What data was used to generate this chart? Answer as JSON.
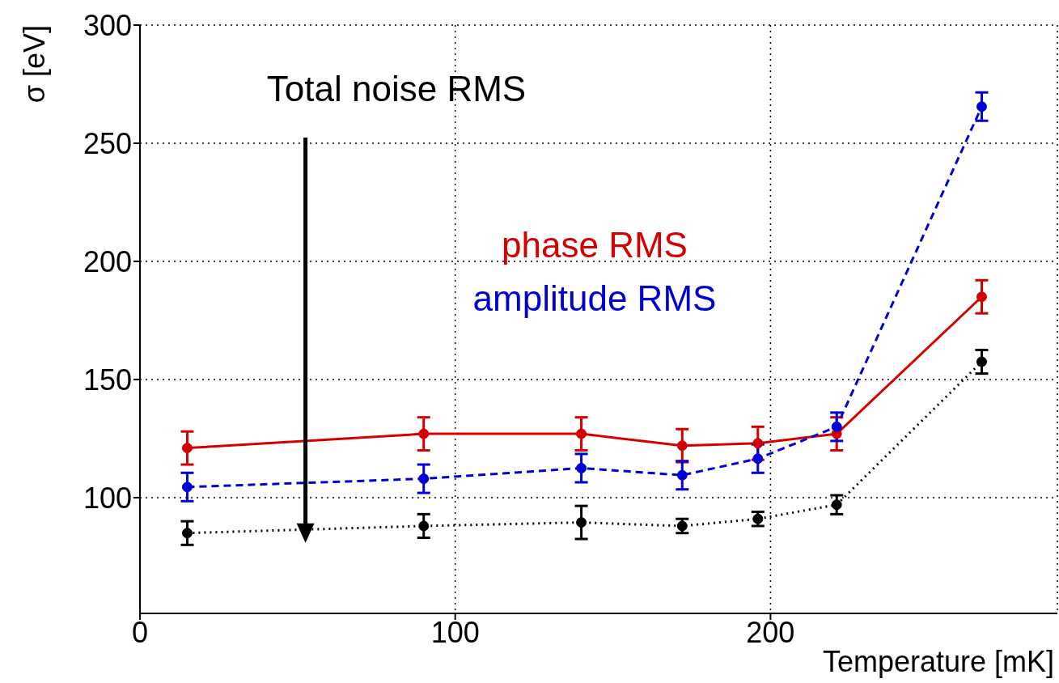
{
  "chart_data": {
    "type": "line",
    "xlabel": "Temperature [mK]",
    "ylabel": "σ [eV]",
    "x": [
      15,
      90,
      140,
      172,
      196,
      221,
      267
    ],
    "xlim": [
      0,
      291
    ],
    "xticks": [
      0,
      100,
      200
    ],
    "ylim": [
      51,
      300
    ],
    "yticks": [
      100,
      150,
      200,
      250,
      300
    ],
    "grid": true,
    "marker": "circle",
    "series": [
      {
        "name": "phase RMS",
        "color": "#d40000",
        "line_style": "solid",
        "values": [
          121,
          127,
          127,
          122,
          123,
          127,
          185
        ],
        "errors": [
          7,
          7,
          7,
          7,
          7,
          7,
          7
        ]
      },
      {
        "name": "amplitude RMS",
        "color": "#0000d4",
        "line_style": "dashed",
        "values": [
          104.5,
          108,
          112.5,
          109.5,
          116.5,
          130,
          265.5
        ],
        "errors": [
          6,
          6,
          6,
          6,
          6,
          6,
          6
        ]
      },
      {
        "name": "Total noise RMS",
        "color": "#000000",
        "line_style": "dotted",
        "values": [
          85,
          88,
          89.5,
          88,
          91,
          97,
          157.5
        ],
        "errors": [
          5,
          5,
          7,
          3,
          3,
          4,
          5
        ]
      }
    ]
  }
}
